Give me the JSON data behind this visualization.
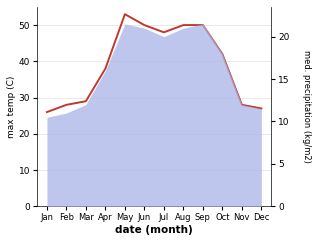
{
  "months": [
    "Jan",
    "Feb",
    "Mar",
    "Apr",
    "May",
    "Jun",
    "Jul",
    "Aug",
    "Sep",
    "Oct",
    "Nov",
    "Dec"
  ],
  "x": [
    1,
    2,
    3,
    4,
    5,
    6,
    7,
    8,
    9,
    10,
    11,
    12
  ],
  "temp_max": [
    26,
    28,
    29,
    38,
    53,
    50,
    48,
    50,
    50,
    42,
    28,
    27
  ],
  "precipitation": [
    10.5,
    11,
    12,
    16,
    21.5,
    21,
    20,
    21,
    21.5,
    18,
    12,
    11.5
  ],
  "temp_ylim": [
    0,
    55
  ],
  "temp_yticks": [
    0,
    10,
    20,
    30,
    40,
    50
  ],
  "precip_ylim": [
    0,
    23.5
  ],
  "precip_yticks": [
    0,
    5,
    10,
    15,
    20
  ],
  "fill_color": "#aab4e8",
  "fill_alpha": 0.75,
  "line_color": "#c0392b",
  "line_width": 1.4,
  "xlabel": "date (month)",
  "ylabel_left": "max temp (C)",
  "ylabel_right": "med. precipitation (kg/m2)",
  "bg_color": "#ffffff"
}
